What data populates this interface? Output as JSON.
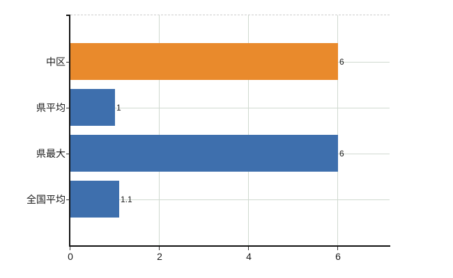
{
  "chart_data": {
    "type": "bar",
    "orientation": "horizontal",
    "title": "",
    "xlabel": "",
    "ylabel": "",
    "categories": [
      "中区",
      "県平均",
      "県最大",
      "全国平均"
    ],
    "values": [
      6,
      1,
      6,
      1.1
    ],
    "value_labels": [
      "6",
      "1",
      "6",
      "1.1"
    ],
    "bar_colors": [
      "#e98a2c",
      "#3e6fad",
      "#3e6fad",
      "#3e6fad"
    ],
    "xlim": [
      0,
      7.17
    ],
    "x_ticks": [
      0,
      2,
      4,
      6
    ],
    "x_tick_labels": [
      "0",
      "2",
      "4",
      "6"
    ],
    "grid": true,
    "legend": false
  },
  "colors": {
    "axis": "#111111",
    "gridline": "#d0d9d0",
    "top_border": "#cccccc",
    "text": "#1a1a1a",
    "background": "#ffffff"
  }
}
